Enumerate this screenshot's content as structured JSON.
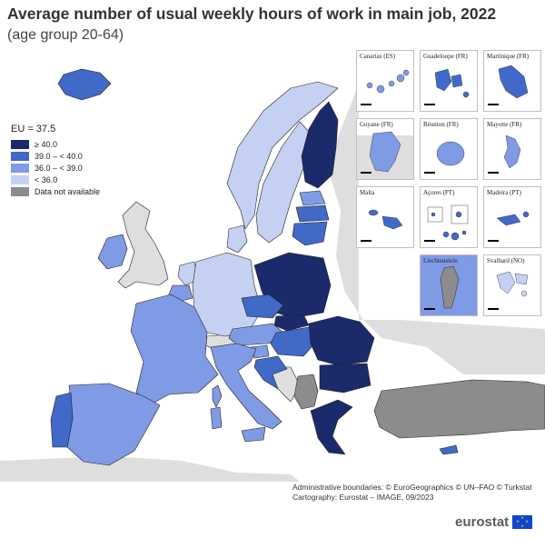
{
  "title": "Average number of usual weekly hours of work in main job, 2022",
  "subtitle": "(age group 20-64)",
  "legend": {
    "title": "EU = 37.5",
    "items": [
      {
        "label": "≥ 40.0",
        "color": "#1b2a6b"
      },
      {
        "label": "39.0 – < 40.0",
        "color": "#4169c8"
      },
      {
        "label": "36.0 – < 39.0",
        "color": "#7f9be6"
      },
      {
        "label": "< 36.0",
        "color": "#c5d1f2"
      },
      {
        "label": "Data not available",
        "color": "#8c8c8c"
      }
    ]
  },
  "colors": {
    "sea": "#ffffff",
    "non_eu_land": "#dedede",
    "border": "#222222"
  },
  "insets": [
    {
      "name": "Canarias (ES)",
      "scale_end": "100"
    },
    {
      "name": "Guadeloupe (FR)",
      "scale_end": "25"
    },
    {
      "name": "Martinique (FR)",
      "scale_end": "20"
    },
    {
      "name": "Guyane (FR)",
      "scale_end": "100"
    },
    {
      "name": "Réunion (FR)",
      "scale_end": "20"
    },
    {
      "name": "Mayotte (FR)",
      "scale_end": "15"
    },
    {
      "name": "Malta",
      "scale_end": "10"
    },
    {
      "name": "Açores (PT)",
      "scale_end": "50"
    },
    {
      "name": "Madeira (PT)",
      "scale_end": "20"
    },
    {
      "name": "Liechtenstein",
      "scale_end": ""
    },
    {
      "name": "Svalbard (NO)",
      "scale_end": "100"
    }
  ],
  "credits": {
    "line1": "Administrative boundaries: © EuroGeographics © UN–FAO © Turkstat",
    "line2": "Cartography: Eurostat – IMAGE, 09/2023"
  },
  "logo": "eurostat"
}
